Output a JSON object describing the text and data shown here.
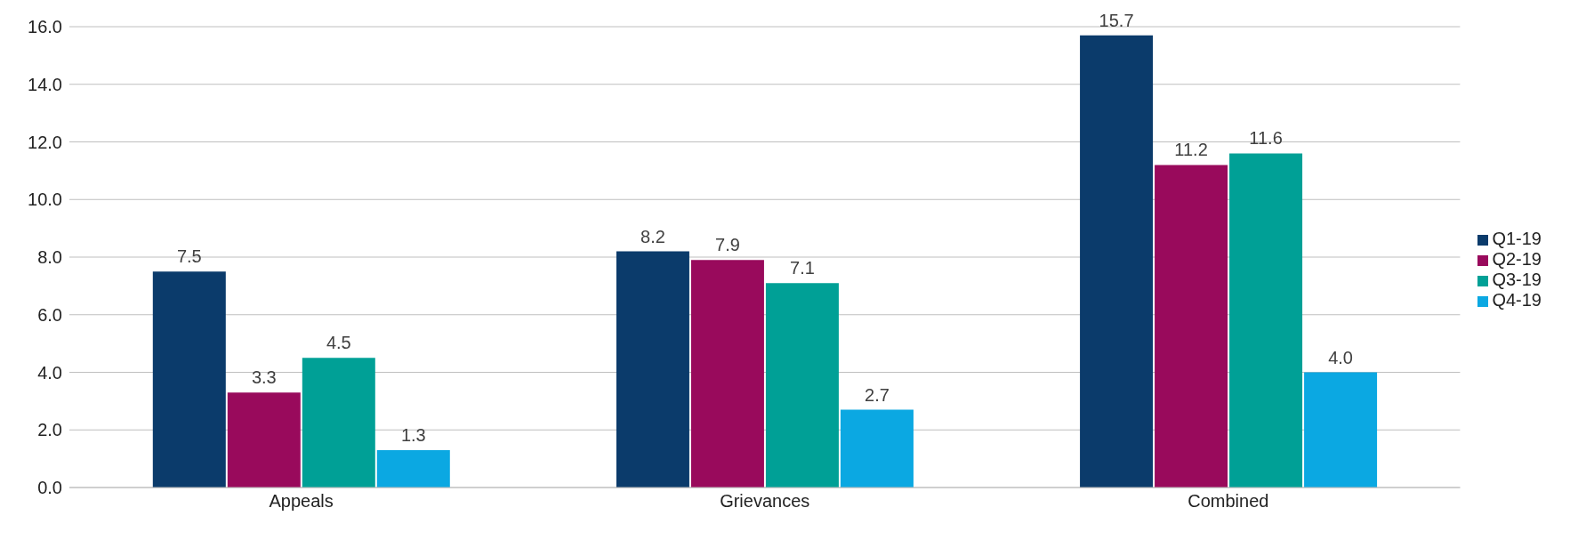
{
  "chart_data": {
    "type": "bar",
    "categories": [
      "Appeals",
      "Grievances",
      "Combined"
    ],
    "series": [
      {
        "name": "Q1-19",
        "color": "#0b3b6b",
        "values": [
          7.5,
          8.2,
          15.7
        ],
        "value_labels": [
          "7.5",
          "8.2",
          "15.7"
        ]
      },
      {
        "name": "Q2-19",
        "color": "#990a5c",
        "values": [
          3.3,
          7.9,
          11.2
        ],
        "value_labels": [
          "3.3",
          "7.9",
          "11.2"
        ]
      },
      {
        "name": "Q3-19",
        "color": "#00a096",
        "values": [
          4.5,
          7.1,
          11.6
        ],
        "value_labels": [
          "4.5",
          "7.1",
          "11.6"
        ]
      },
      {
        "name": "Q4-19",
        "color": "#0ba8e2",
        "values": [
          1.3,
          2.7,
          4.0
        ],
        "value_labels": [
          "1.3",
          "2.7",
          "4.0"
        ]
      }
    ],
    "ylim": [
      0,
      16
    ],
    "yticks": [
      {
        "value": 0,
        "label": "0.0"
      },
      {
        "value": 2,
        "label": "2.0"
      },
      {
        "value": 4,
        "label": "4.0"
      },
      {
        "value": 6,
        "label": "6.0"
      },
      {
        "value": 8,
        "label": "8.0"
      },
      {
        "value": 10,
        "label": "10.0"
      },
      {
        "value": 12,
        "label": "12.0"
      },
      {
        "value": 14,
        "label": "14.0"
      },
      {
        "value": 16,
        "label": "16.0"
      }
    ],
    "grid": "y",
    "legend": "right"
  }
}
